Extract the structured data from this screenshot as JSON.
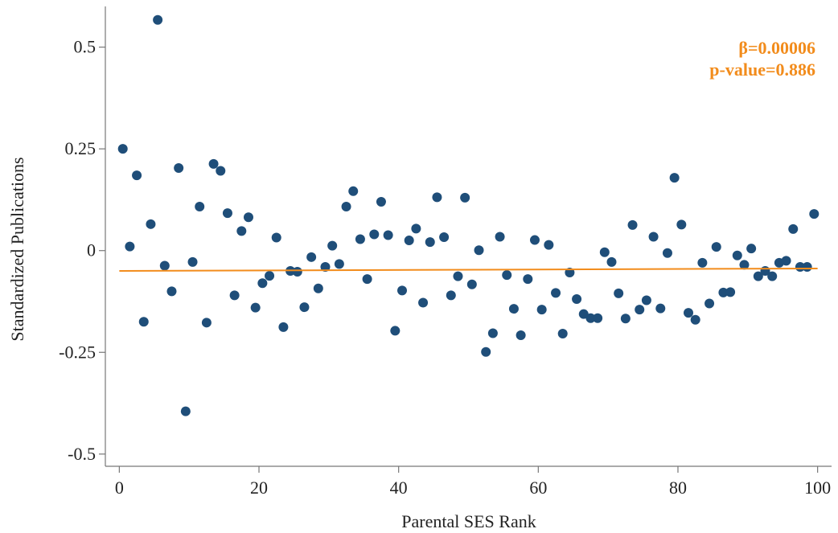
{
  "chart_data": {
    "type": "scatter",
    "xlabel": "Parental SES Rank",
    "ylabel": "Standardized Publications",
    "xlim": [
      -2,
      102
    ],
    "ylim": [
      -0.53,
      0.6
    ],
    "xticks": [
      0,
      20,
      40,
      60,
      80,
      100
    ],
    "xtick_labels": [
      "0",
      "20",
      "40",
      "60",
      "80",
      "100"
    ],
    "yticks": [
      0.5,
      0.25,
      0,
      -0.25,
      -0.5
    ],
    "ytick_labels": [
      "0.5",
      "0.25",
      "0",
      "-0.25",
      "-0.5"
    ],
    "grid": false,
    "annotations": [
      "β=0.00006",
      "p-value=0.886"
    ],
    "colors": {
      "points": "#1f4e79",
      "fit_line": "#f28c1c",
      "axis": "#777777"
    },
    "fit_line": {
      "x": [
        0,
        100
      ],
      "y": [
        -0.05,
        -0.044
      ]
    },
    "points": [
      [
        0.5,
        0.25
      ],
      [
        1.5,
        0.01
      ],
      [
        2.5,
        0.185
      ],
      [
        3.5,
        -0.175
      ],
      [
        4.5,
        0.065
      ],
      [
        5.5,
        0.567
      ],
      [
        6.5,
        -0.037
      ],
      [
        7.5,
        -0.1
      ],
      [
        8.5,
        0.203
      ],
      [
        9.5,
        -0.395
      ],
      [
        10.5,
        -0.028
      ],
      [
        11.5,
        0.108
      ],
      [
        12.5,
        -0.177
      ],
      [
        13.5,
        0.213
      ],
      [
        14.5,
        0.196
      ],
      [
        15.5,
        0.092
      ],
      [
        16.5,
        -0.11
      ],
      [
        17.5,
        0.048
      ],
      [
        18.5,
        0.082
      ],
      [
        19.5,
        -0.14
      ],
      [
        20.5,
        -0.08
      ],
      [
        21.5,
        -0.062
      ],
      [
        22.5,
        0.032
      ],
      [
        23.5,
        -0.188
      ],
      [
        24.5,
        -0.05
      ],
      [
        25.5,
        -0.052
      ],
      [
        26.5,
        -0.139
      ],
      [
        27.5,
        -0.016
      ],
      [
        28.5,
        -0.093
      ],
      [
        29.5,
        -0.04
      ],
      [
        30.5,
        0.012
      ],
      [
        31.5,
        -0.033
      ],
      [
        32.5,
        0.108
      ],
      [
        33.5,
        0.146
      ],
      [
        34.5,
        0.028
      ],
      [
        35.5,
        -0.07
      ],
      [
        36.5,
        0.04
      ],
      [
        37.5,
        0.12
      ],
      [
        38.5,
        0.038
      ],
      [
        39.5,
        -0.197
      ],
      [
        40.5,
        -0.098
      ],
      [
        41.5,
        0.025
      ],
      [
        42.5,
        0.054
      ],
      [
        43.5,
        -0.128
      ],
      [
        44.5,
        0.021
      ],
      [
        45.5,
        0.131
      ],
      [
        46.5,
        0.033
      ],
      [
        47.5,
        -0.11
      ],
      [
        48.5,
        -0.063
      ],
      [
        49.5,
        0.13
      ],
      [
        50.5,
        -0.083
      ],
      [
        51.5,
        0.001
      ],
      [
        52.5,
        -0.249
      ],
      [
        53.5,
        -0.203
      ],
      [
        54.5,
        0.034
      ],
      [
        55.5,
        -0.06
      ],
      [
        56.5,
        -0.143
      ],
      [
        57.5,
        -0.208
      ],
      [
        58.5,
        -0.07
      ],
      [
        59.5,
        0.026
      ],
      [
        60.5,
        -0.145
      ],
      [
        61.5,
        0.014
      ],
      [
        62.5,
        -0.104
      ],
      [
        63.5,
        -0.204
      ],
      [
        64.5,
        -0.054
      ],
      [
        65.5,
        -0.119
      ],
      [
        66.5,
        -0.156
      ],
      [
        67.5,
        -0.166
      ],
      [
        68.5,
        -0.166
      ],
      [
        69.5,
        -0.004
      ],
      [
        70.5,
        -0.028
      ],
      [
        71.5,
        -0.105
      ],
      [
        72.5,
        -0.167
      ],
      [
        73.5,
        0.063
      ],
      [
        74.5,
        -0.145
      ],
      [
        75.5,
        -0.122
      ],
      [
        76.5,
        0.034
      ],
      [
        77.5,
        -0.142
      ],
      [
        78.5,
        -0.006
      ],
      [
        79.5,
        0.179
      ],
      [
        80.5,
        0.064
      ],
      [
        81.5,
        -0.153
      ],
      [
        82.5,
        -0.17
      ],
      [
        83.5,
        -0.03
      ],
      [
        84.5,
        -0.13
      ],
      [
        85.5,
        0.009
      ],
      [
        86.5,
        -0.103
      ],
      [
        87.5,
        -0.102
      ],
      [
        88.5,
        -0.012
      ],
      [
        89.5,
        -0.035
      ],
      [
        90.5,
        0.005
      ],
      [
        91.5,
        -0.063
      ],
      [
        92.5,
        -0.05
      ],
      [
        93.5,
        -0.063
      ],
      [
        94.5,
        -0.03
      ],
      [
        95.5,
        -0.025
      ],
      [
        96.5,
        0.053
      ],
      [
        97.5,
        -0.04
      ],
      [
        98.5,
        -0.04
      ],
      [
        99.5,
        0.09
      ]
    ]
  }
}
